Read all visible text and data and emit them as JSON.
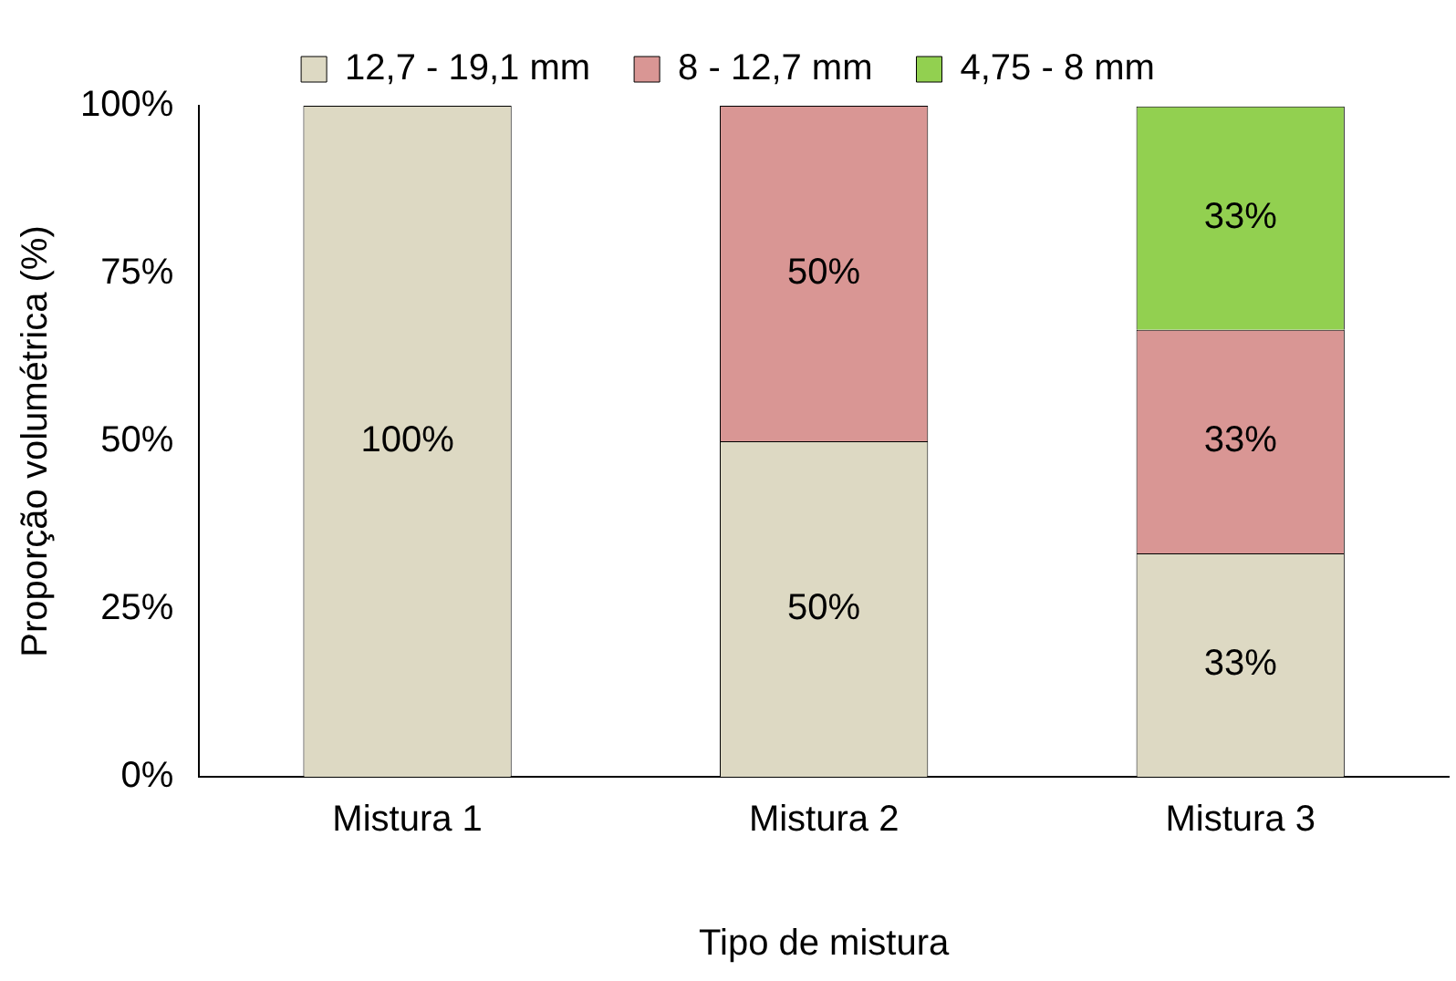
{
  "chart_data": {
    "type": "bar",
    "stacked": true,
    "xlabel": "Tipo de mistura",
    "ylabel": "Proporção volumétrica (%)",
    "categories": [
      "Mistura 1",
      "Mistura 2",
      "Mistura 3"
    ],
    "series": [
      {
        "name": "12,7 - 19,1 mm",
        "color": "#ddd9c3",
        "values": [
          100,
          50,
          33.3
        ],
        "value_labels": [
          "100%",
          "50%",
          "33%"
        ]
      },
      {
        "name": "8 - 12,7 mm",
        "color": "#d99694",
        "values": [
          null,
          50,
          33.3
        ],
        "value_labels": [
          null,
          "50%",
          "33%"
        ]
      },
      {
        "name": "4,75 - 8 mm",
        "color": "#92d050",
        "values": [
          null,
          null,
          33.3
        ],
        "value_labels": [
          null,
          null,
          "33%"
        ]
      }
    ],
    "ylim": [
      0,
      100
    ],
    "yticks": [
      {
        "value": 0,
        "label": "0%"
      },
      {
        "value": 25,
        "label": "25%"
      },
      {
        "value": 50,
        "label": "50%"
      },
      {
        "value": 75,
        "label": "75%"
      },
      {
        "value": 100,
        "label": "100%"
      }
    ],
    "grid": false,
    "legend": "top"
  }
}
